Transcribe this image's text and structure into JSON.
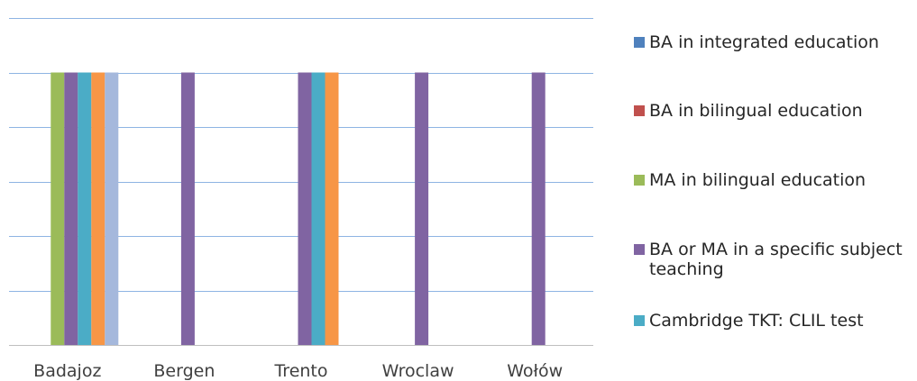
{
  "chart_data": {
    "type": "bar",
    "categories": [
      "Badajoz",
      "Bergen",
      "Trento",
      "Wroclaw",
      "Wołów"
    ],
    "series": [
      {
        "name": "BA in integrated education",
        "color": "#4f81bd",
        "values": [
          0,
          0,
          0,
          0,
          0
        ]
      },
      {
        "name": "BA in bilingual education",
        "color": "#c0504d",
        "values": [
          0,
          0,
          0,
          0,
          0
        ]
      },
      {
        "name": "MA in bilingual education",
        "color": "#9bbb59",
        "values": [
          1,
          0,
          0,
          0,
          0
        ]
      },
      {
        "name": "BA or MA in a specific subject teaching",
        "color": "#8064a2",
        "values": [
          1,
          1,
          1,
          1,
          1
        ]
      },
      {
        "name": "Cambridge TKT: CLIL test",
        "color": "#4bacc6",
        "values": [
          1,
          0,
          1,
          0,
          0
        ]
      },
      {
        "color": "#f79646",
        "values": [
          1,
          0,
          1,
          0,
          0
        ]
      },
      {
        "color": "#a5b8dc",
        "values": [
          1,
          0,
          0,
          0,
          0
        ]
      }
    ],
    "ylim": [
      0,
      1.2
    ],
    "y_gridlines": [
      0,
      0.2,
      0.4,
      0.6,
      0.8,
      1.0,
      1.2
    ],
    "grid": true,
    "legend_position": "right",
    "legend_visible_count": 5
  }
}
